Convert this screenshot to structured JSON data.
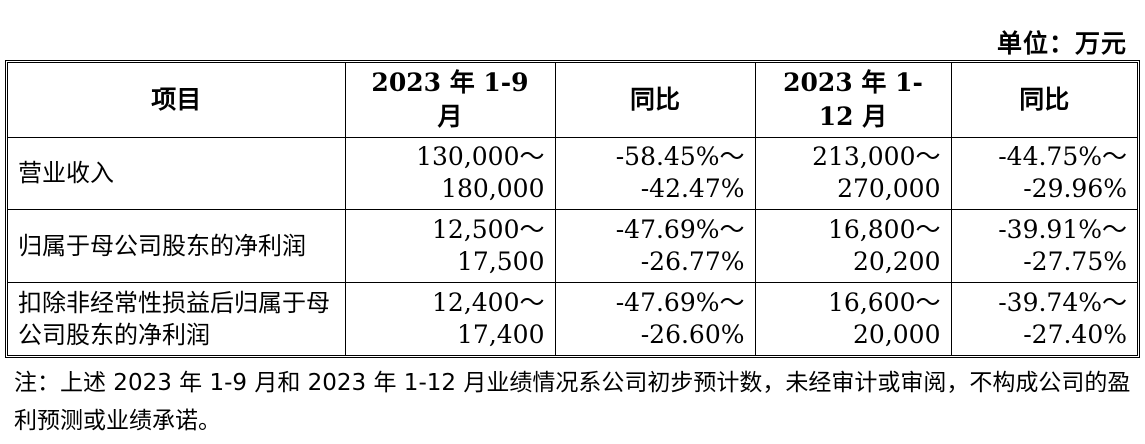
{
  "unit": "单位：万元",
  "table": {
    "headers": [
      "项目",
      "2023 年 1-9 月",
      "同比",
      "2023 年 1-12 月",
      "同比"
    ],
    "rows": [
      {
        "label": "营业收入",
        "cells": [
          [
            "130,000～",
            "180,000"
          ],
          [
            "-58.45%～",
            "-42.47%"
          ],
          [
            "213,000～",
            "270,000"
          ],
          [
            "-44.75%～",
            "-29.96%"
          ]
        ]
      },
      {
        "label": "归属于母公司股东的净利润",
        "cells": [
          [
            "12,500～",
            "17,500"
          ],
          [
            "-47.69%～",
            "-26.77%"
          ],
          [
            "16,800～",
            "20,200"
          ],
          [
            "-39.91%～",
            "-27.75%"
          ]
        ]
      },
      {
        "label": "扣除非经常性损益后归属于母公司股东的净利润",
        "cells": [
          [
            "12,400～",
            "17,400"
          ],
          [
            "-47.69%～",
            "-26.60%"
          ],
          [
            "16,600～",
            "20,000"
          ],
          [
            "-39.74%～",
            "-27.40%"
          ]
        ]
      }
    ]
  },
  "note": "注：上述 2023 年 1-9 月和 2023 年 1-12 月业绩情况系公司初步预计数，未经审计或审阅，不构成公司的盈利预测或业绩承诺。"
}
